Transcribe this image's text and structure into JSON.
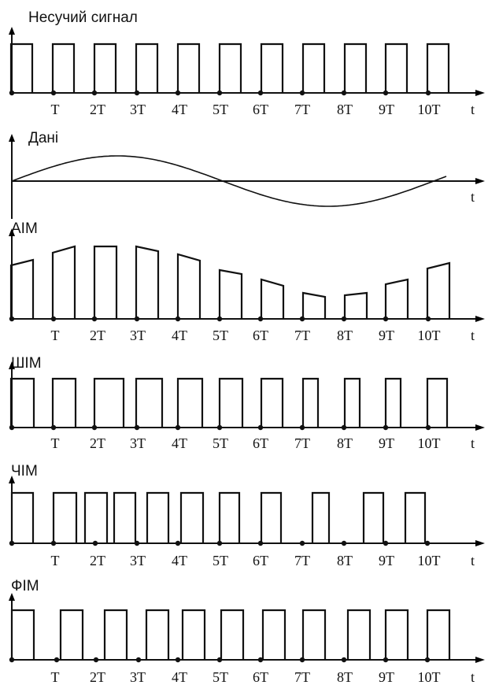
{
  "panels": [
    {
      "id": "carrier",
      "kind": "pulse",
      "title": "Несучий сигнал"
    },
    {
      "id": "data",
      "kind": "wave",
      "title": "Дані"
    },
    {
      "id": "aim",
      "kind": "pulse",
      "title": "АІМ"
    },
    {
      "id": "shim",
      "kind": "pulse",
      "title": "ШІМ"
    },
    {
      "id": "chim",
      "kind": "pulse",
      "title": "ЧІМ"
    },
    {
      "id": "fim",
      "kind": "pulse",
      "title": "ФІМ"
    }
  ],
  "tick_labels": [
    "T",
    "2T",
    "3T",
    "4T",
    "5T",
    "6T",
    "7T",
    "8T",
    "9T",
    "10T"
  ],
  "axis_unit": "t"
}
